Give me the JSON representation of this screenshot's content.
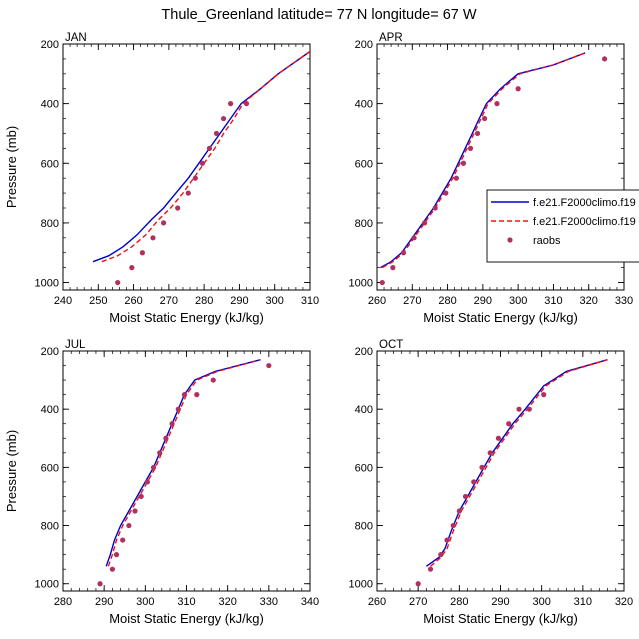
{
  "title": "Thule_Greenland  latitude= 77 N longitude= 67 W",
  "legend": {
    "entries": [
      {
        "label": "f.e21.F2000climo.f19",
        "color": "#0000cc",
        "style": "solid"
      },
      {
        "label": "f.e21.F2000climo.f19",
        "color": "#ee1111",
        "style": "dashed"
      },
      {
        "label": "raobs",
        "color": "#b03060",
        "style": "dot"
      }
    ]
  },
  "chart_data": [
    {
      "type": "line",
      "panel_label": "JAN",
      "xlabel": "Moist Static Energy (kJ/kg)",
      "ylabel": "Pressure (mb)",
      "xlim": [
        240,
        310
      ],
      "ylim": [
        1025,
        200
      ],
      "xticks": [
        240,
        250,
        260,
        270,
        280,
        290,
        300,
        310
      ],
      "yticks": [
        200,
        400,
        600,
        800,
        1000
      ],
      "series": [
        {
          "x": [
            248.5,
            253,
            257,
            261,
            265,
            268.5,
            272,
            275.5,
            278.5,
            281.5,
            284.5,
            287.5,
            290.5,
            296,
            301,
            310
          ],
          "y": [
            930,
            910,
            880,
            840,
            790,
            750,
            700,
            650,
            600,
            550,
            500,
            450,
            400,
            350,
            300,
            225
          ]
        },
        {
          "x": [
            251,
            255.5,
            259.5,
            263.5,
            267,
            270.5,
            274,
            277,
            280,
            283,
            285.5,
            288.5,
            291,
            296,
            301,
            310
          ],
          "y": [
            930,
            910,
            880,
            840,
            790,
            750,
            700,
            650,
            600,
            550,
            500,
            450,
            400,
            350,
            300,
            225
          ]
        },
        {
          "x": [
            255.5,
            259.5,
            262.5,
            265.5,
            268.5,
            272.5,
            275.5,
            277.5,
            279.5,
            281.5,
            283.5,
            285.5,
            287.5,
            292
          ],
          "y": [
            1000,
            950,
            900,
            850,
            800,
            750,
            700,
            650,
            600,
            550,
            500,
            450,
            400,
            400
          ]
        }
      ]
    },
    {
      "type": "line",
      "panel_label": "APR",
      "xlabel": "Moist Static Energy (kJ/kg)",
      "ylabel": "",
      "xlim": [
        260,
        330
      ],
      "ylim": [
        1025,
        200
      ],
      "xticks": [
        260,
        270,
        280,
        290,
        300,
        310,
        320,
        330
      ],
      "yticks": [
        200,
        400,
        600,
        800,
        1000
      ],
      "series": [
        {
          "x": [
            261,
            264,
            267,
            270,
            273,
            276,
            278.5,
            281,
            283,
            285,
            287,
            289,
            291,
            295,
            300,
            310,
            319
          ],
          "y": [
            950,
            930,
            900,
            850,
            800,
            750,
            700,
            650,
            600,
            550,
            500,
            450,
            400,
            350,
            300,
            270,
            230
          ]
        },
        {
          "x": [
            261.5,
            264.5,
            267.5,
            270.5,
            273.5,
            276.5,
            279,
            281.5,
            283.5,
            285.5,
            287.5,
            289.5,
            291.5,
            295.5,
            300.5,
            310,
            319
          ],
          "y": [
            950,
            930,
            900,
            850,
            800,
            750,
            700,
            650,
            600,
            550,
            500,
            450,
            400,
            350,
            300,
            270,
            230
          ]
        },
        {
          "x": [
            261.5,
            264.5,
            267.5,
            270.5,
            273.5,
            276.5,
            279.5,
            282.5,
            284.5,
            286.5,
            288.5,
            290.5,
            294,
            300,
            324.5
          ],
          "y": [
            1000,
            950,
            900,
            850,
            800,
            750,
            700,
            650,
            600,
            550,
            500,
            450,
            400,
            350,
            250
          ]
        }
      ]
    },
    {
      "type": "line",
      "panel_label": "JUL",
      "xlabel": "Moist Static Energy (kJ/kg)",
      "ylabel": "Pressure (mb)",
      "xlim": [
        280,
        340
      ],
      "ylim": [
        1025,
        200
      ],
      "xticks": [
        280,
        290,
        300,
        310,
        320,
        330,
        340
      ],
      "yticks": [
        200,
        400,
        600,
        800,
        1000
      ],
      "series": [
        {
          "x": [
            290.5,
            291.5,
            292.5,
            294,
            296,
            298,
            300,
            302,
            303.5,
            305,
            306.5,
            308,
            309.5,
            312,
            317,
            328
          ],
          "y": [
            940,
            900,
            850,
            800,
            750,
            700,
            650,
            600,
            550,
            500,
            450,
            400,
            350,
            300,
            270,
            230
          ]
        },
        {
          "x": [
            291,
            292,
            293,
            294.5,
            296.5,
            298.5,
            300.5,
            302.5,
            304,
            305.5,
            307,
            308.5,
            310,
            312.5,
            317.5,
            328
          ],
          "y": [
            940,
            900,
            850,
            800,
            750,
            700,
            650,
            600,
            550,
            500,
            450,
            400,
            350,
            300,
            270,
            230
          ]
        },
        {
          "x": [
            289,
            292,
            293,
            294.5,
            296,
            297.5,
            299,
            300.5,
            302,
            303.5,
            305,
            306.5,
            308,
            309.5,
            312.5,
            316.5,
            330
          ],
          "y": [
            1000,
            950,
            900,
            850,
            800,
            750,
            700,
            650,
            600,
            550,
            500,
            450,
            400,
            350,
            350,
            300,
            250
          ]
        }
      ]
    },
    {
      "type": "line",
      "panel_label": "OCT",
      "xlabel": "Moist Static Energy (kJ/kg)",
      "ylabel": "",
      "xlim": [
        260,
        320
      ],
      "ylim": [
        1025,
        200
      ],
      "xticks": [
        260,
        270,
        280,
        290,
        300,
        310,
        320
      ],
      "yticks": [
        200,
        400,
        600,
        800,
        1000
      ],
      "series": [
        {
          "x": [
            272,
            275,
            276.5,
            278,
            280,
            282,
            284,
            286,
            288,
            290.5,
            293,
            296,
            300.5,
            306,
            316
          ],
          "y": [
            940,
            910,
            880,
            820,
            750,
            700,
            650,
            600,
            550,
            500,
            450,
            400,
            320,
            270,
            230
          ]
        },
        {
          "x": [
            273,
            275.5,
            277,
            278.5,
            280.5,
            282.5,
            284.5,
            286.5,
            288.5,
            291,
            293.5,
            296.5,
            301,
            306.5,
            316
          ],
          "y": [
            940,
            910,
            880,
            820,
            750,
            700,
            650,
            600,
            550,
            500,
            450,
            400,
            320,
            270,
            230
          ]
        },
        {
          "x": [
            270,
            273,
            275.5,
            277,
            278.5,
            280,
            281.5,
            283.5,
            285.5,
            287.5,
            289.5,
            292,
            294.5,
            297,
            300.5
          ],
          "y": [
            1000,
            950,
            900,
            850,
            800,
            750,
            700,
            650,
            600,
            550,
            500,
            450,
            400,
            400,
            350
          ]
        }
      ]
    }
  ]
}
